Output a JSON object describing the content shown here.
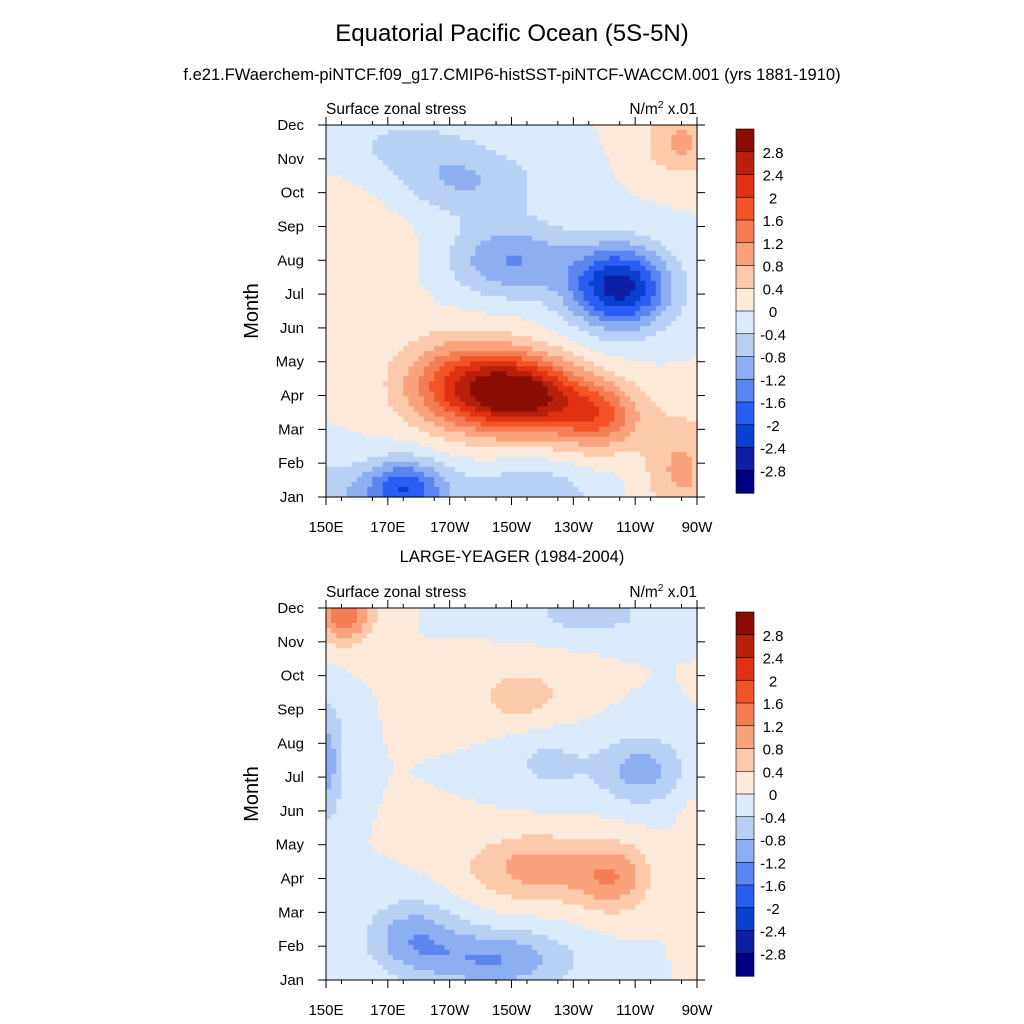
{
  "header": {
    "title": "Equatorial Pacific Ocean (5S-5N)",
    "subtitle": "f.e21.FWaerchem-piNTCF.f09_g17.CMIP6-histSST-piNTCF-WACCM.001 (yrs 1881-1910)"
  },
  "panel2_title": "LARGE-YEAGER (1984-2004)",
  "colors": {
    "levels": [
      "#000080",
      "#0d1fa5",
      "#0a3fd0",
      "#2a5ef2",
      "#5b86f0",
      "#8caff2",
      "#b9d0f5",
      "#dcebfb",
      "#feeadb",
      "#fccaaa",
      "#f9a27c",
      "#f57d55",
      "#f25428",
      "#e03112",
      "#b7200a",
      "#8a0d03"
    ]
  },
  "chart_data": [
    {
      "type": "heatmap",
      "title_left": "Surface zonal stress",
      "title_right_base": "N/m",
      "title_right_sup": "2",
      "title_right_suffix": " x.01",
      "ylabel": "Month",
      "x_ticks": [
        "150E",
        "170E",
        "170W",
        "150W",
        "130W",
        "110W",
        "90W"
      ],
      "x_range_deg_east": [
        150,
        270
      ],
      "y_ticks": [
        "Jan",
        "Feb",
        "Mar",
        "Apr",
        "May",
        "Jun",
        "Jul",
        "Aug",
        "Sep",
        "Oct",
        "Nov",
        "Dec"
      ],
      "colorbar_labels": [
        "2.8",
        "2.4",
        "2",
        "1.6",
        "1.2",
        "0.8",
        "0.4",
        "0",
        "-0.4",
        "-0.8",
        "-1.2",
        "-1.6",
        "-2",
        "-2.4",
        "-2.8"
      ],
      "features": [
        {
          "lon": 150,
          "month": 1,
          "value": -0.6,
          "sx": 12,
          "sy": 1.1
        },
        {
          "lon": 175,
          "month": 1.2,
          "value": -2.0,
          "sx": 14,
          "sy": 0.9
        },
        {
          "lon": 215,
          "month": 1.0,
          "value": -0.8,
          "sx": 22,
          "sy": 1.0
        },
        {
          "lon": 195,
          "month": 4.3,
          "value": 2.0,
          "sx": 20,
          "sy": 1.3
        },
        {
          "lon": 215,
          "month": 4.0,
          "value": 2.6,
          "sx": 18,
          "sy": 1.1
        },
        {
          "lon": 238,
          "month": 3.4,
          "value": 1.6,
          "sx": 14,
          "sy": 1.0
        },
        {
          "lon": 265,
          "month": 1.8,
          "value": 0.9,
          "sx": 12,
          "sy": 1.6
        },
        {
          "lon": 245,
          "month": 7.2,
          "value": -2.6,
          "sx": 16,
          "sy": 1.2
        },
        {
          "lon": 210,
          "month": 8.0,
          "value": -1.2,
          "sx": 20,
          "sy": 1.1
        },
        {
          "lon": 195,
          "month": 10.3,
          "value": -0.8,
          "sx": 24,
          "sy": 1.0
        },
        {
          "lon": 175,
          "month": 11.4,
          "value": -0.5,
          "sx": 24,
          "sy": 0.9
        },
        {
          "lon": 160,
          "month": 8.2,
          "value": 0.3,
          "sx": 20,
          "sy": 2.5
        },
        {
          "lon": 265,
          "month": 11.5,
          "value": 0.9,
          "sx": 12,
          "sy": 1.0
        }
      ]
    },
    {
      "type": "heatmap",
      "title_left": "Surface zonal stress",
      "title_right_base": "N/m",
      "title_right_sup": "2",
      "title_right_suffix": " x.01",
      "ylabel": "Month",
      "x_ticks": [
        "150E",
        "170E",
        "170W",
        "150W",
        "130W",
        "110W",
        "90W"
      ],
      "x_range_deg_east": [
        150,
        270
      ],
      "y_ticks": [
        "Jan",
        "Feb",
        "Mar",
        "Apr",
        "May",
        "Jun",
        "Jul",
        "Aug",
        "Sep",
        "Oct",
        "Nov",
        "Dec"
      ],
      "colorbar_labels": [
        "2.8",
        "2.4",
        "2",
        "1.6",
        "1.2",
        "0.8",
        "0.4",
        "0",
        "-0.4",
        "-0.8",
        "-1.2",
        "-1.6",
        "-2",
        "-2.4",
        "-2.8"
      ],
      "features": [
        {
          "lon": 156,
          "month": 11.9,
          "value": 1.6,
          "sx": 9,
          "sy": 0.9
        },
        {
          "lon": 150,
          "month": 7.5,
          "value": -1.0,
          "sx": 6,
          "sy": 1.8
        },
        {
          "lon": 178,
          "month": 2.3,
          "value": -1.0,
          "sx": 15,
          "sy": 1.1
        },
        {
          "lon": 205,
          "month": 1.6,
          "value": -1.2,
          "sx": 24,
          "sy": 0.9
        },
        {
          "lon": 218,
          "month": 4.3,
          "value": 1.0,
          "sx": 22,
          "sy": 1.0
        },
        {
          "lon": 243,
          "month": 4.0,
          "value": 1.0,
          "sx": 12,
          "sy": 1.0
        },
        {
          "lon": 213,
          "month": 9.4,
          "value": 0.6,
          "sx": 16,
          "sy": 0.9
        },
        {
          "lon": 235,
          "month": 11.8,
          "value": -0.6,
          "sx": 22,
          "sy": 0.6
        },
        {
          "lon": 252,
          "month": 7.2,
          "value": -1.0,
          "sx": 14,
          "sy": 1.0
        },
        {
          "lon": 222,
          "month": 7.4,
          "value": -0.5,
          "sx": 14,
          "sy": 1.0
        },
        {
          "lon": 268,
          "month": 4.0,
          "value": 0.3,
          "sx": 4,
          "sy": 2.5
        }
      ]
    }
  ]
}
